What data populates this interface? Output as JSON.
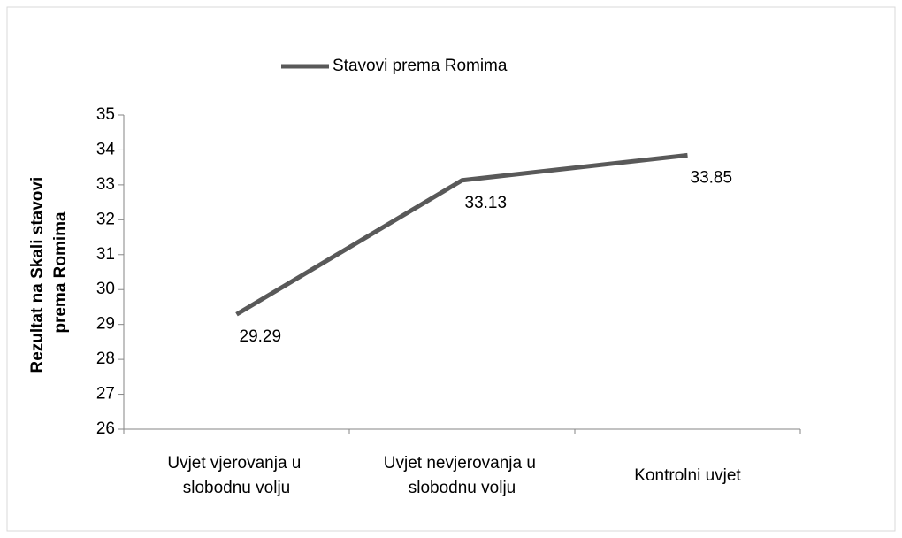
{
  "chart_data": {
    "type": "line",
    "categories": [
      "Uvjet vjerovanja u slobodnu volju",
      "Uvjet nevjerovanja u slobodnu volju",
      "Kontrolni uvjet"
    ],
    "series": [
      {
        "name": "Stavovi prema Romima",
        "color": "#595959",
        "values": [
          29.29,
          33.13,
          33.85
        ]
      }
    ],
    "y_label": "Rezultat na Skali stavovi prema Romima",
    "ylim": [
      26,
      35
    ],
    "yticks": [
      26,
      27,
      28,
      29,
      30,
      31,
      32,
      33,
      34,
      35
    ],
    "legend": "top"
  }
}
